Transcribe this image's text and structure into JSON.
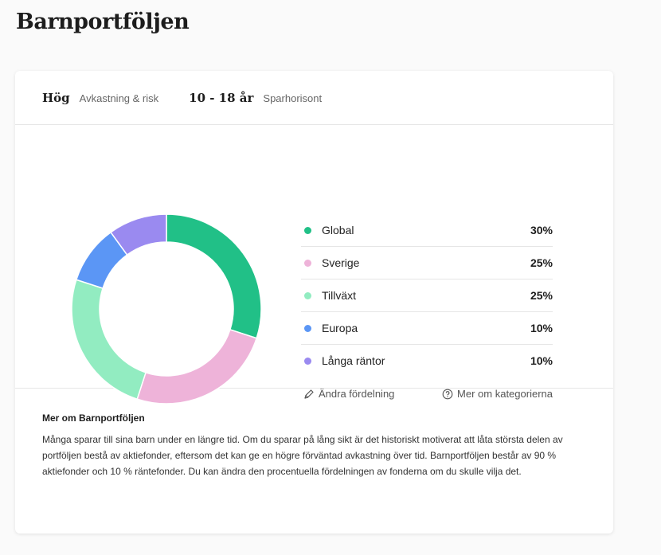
{
  "page": {
    "title": "Barnportföljen"
  },
  "header": {
    "risk_value": "Hög",
    "risk_label": "Avkastning & risk",
    "horizon_value": "10 - 18 år",
    "horizon_label": "Sparhorisont"
  },
  "chart_data": {
    "type": "pie",
    "style": "donut",
    "categories": [
      "Global",
      "Sverige",
      "Tillväxt",
      "Europa",
      "Långa räntor"
    ],
    "values": [
      30,
      25,
      25,
      10,
      10
    ],
    "value_labels": [
      "30%",
      "25%",
      "25%",
      "10%",
      "10%"
    ],
    "colors": [
      "#21c087",
      "#eeb3d9",
      "#92ecc1",
      "#5b96f5",
      "#9a8af0"
    ],
    "legend_position": "right"
  },
  "actions": {
    "edit_label": "Ändra fördelning",
    "info_label": "Mer om kategorierna"
  },
  "info": {
    "title": "Mer om Barnportföljen",
    "text": "Många sparar till sina barn under en längre tid. Om du sparar på lång sikt är det historiskt motiverat att låta största delen av portföljen bestå av aktiefonder, eftersom det kan ge en högre förväntad avkastning över tid. Barnportföljen består av 90 % aktiefonder och 10 % räntefonder. Du kan ändra den procentuella fördelningen av fonderna om du skulle vilja det."
  }
}
